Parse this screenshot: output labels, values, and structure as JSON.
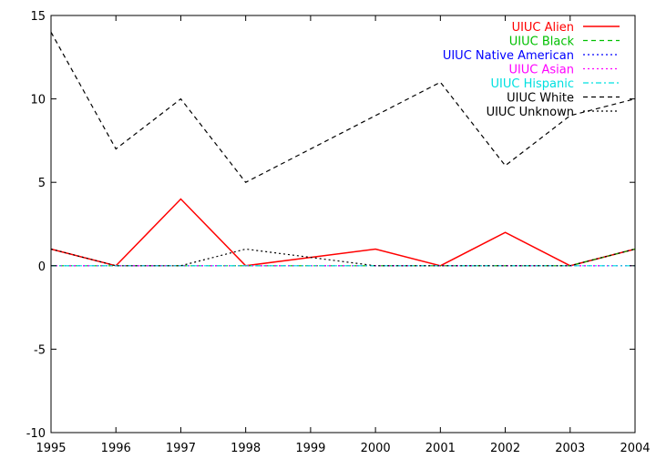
{
  "chart_data": {
    "type": "line",
    "title": "",
    "xlabel": "",
    "ylabel": "",
    "x": [
      1995,
      1996,
      1997,
      1998,
      1999,
      2000,
      2001,
      2002,
      2003,
      2004
    ],
    "xlim": [
      1995,
      2004
    ],
    "ylim": [
      -10,
      15
    ],
    "yticks": [
      -10,
      -5,
      0,
      5,
      10,
      15
    ],
    "xticks": [
      1995,
      1996,
      1997,
      1998,
      1999,
      2000,
      2001,
      2002,
      2003,
      2004
    ],
    "grid": false,
    "legend_position": "top-right",
    "series": [
      {
        "name": "UIUC Alien",
        "color": "#ff0000",
        "dash": "solid",
        "values": [
          1,
          0,
          4,
          0,
          0.5,
          1,
          0,
          2,
          0,
          1
        ]
      },
      {
        "name": "UIUC Black",
        "color": "#00c000",
        "dash": "dashed",
        "values": [
          0,
          0,
          0,
          0,
          0,
          0,
          0,
          0,
          0,
          1
        ]
      },
      {
        "name": "UIUC Native American",
        "color": "#0000ff",
        "dash": "dotted",
        "values": [
          0,
          0,
          0,
          0,
          0,
          0,
          0,
          0,
          0,
          0
        ]
      },
      {
        "name": "UIUC Asian",
        "color": "#ff00ff",
        "dash": "dotted",
        "values": [
          0,
          0,
          0,
          0,
          0,
          0,
          0,
          0,
          0,
          0
        ]
      },
      {
        "name": "UIUC Hispanic",
        "color": "#00e0e0",
        "dash": "dashdot",
        "values": [
          0,
          0,
          0,
          0,
          0,
          0,
          0,
          0,
          0,
          0
        ]
      },
      {
        "name": "UIUC White",
        "color": "#000000",
        "dash": "dashed",
        "values": [
          14,
          7,
          10,
          5,
          7,
          9,
          11,
          6,
          9,
          10
        ]
      },
      {
        "name": "UIUC Unknown",
        "color": "#000000",
        "dash": "dotted",
        "values": [
          1,
          0,
          0,
          1,
          0.5,
          0,
          0,
          0,
          0,
          1
        ]
      }
    ]
  }
}
